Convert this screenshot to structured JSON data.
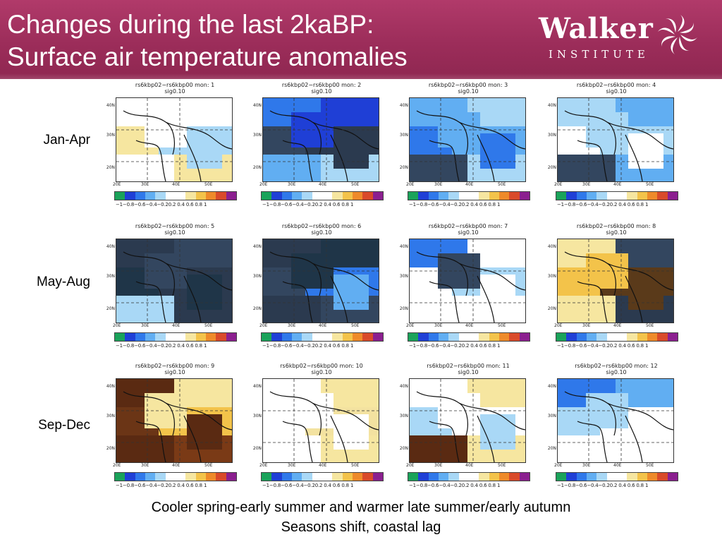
{
  "header": {
    "title_line1": "Changes during the last 2kaBP:",
    "title_line2": "Surface air temperature anomalies",
    "logo_word": "Walker",
    "logo_sub": "INSTITUTE"
  },
  "rows": [
    {
      "label": "Jan-Apr"
    },
    {
      "label": "May-Aug"
    },
    {
      "label": "Sep-Dec"
    }
  ],
  "panels": [
    {
      "title1": "rs6kbp02−rs6kbp00  mon: 1",
      "title2": "sig0.10",
      "scheme": "mixed_light"
    },
    {
      "title1": "rs6kbp02−rs6kbp00  mon: 2",
      "title2": "sig0.10",
      "scheme": "blue_dark"
    },
    {
      "title1": "rs6kbp02−rs6kbp00  mon: 3",
      "title2": "sig0.10",
      "scheme": "blue_mid"
    },
    {
      "title1": "rs6kbp02−rs6kbp00  mon: 4",
      "title2": "sig0.10",
      "scheme": "blue_light"
    },
    {
      "title1": "rs6kbp02−rs6kbp00  mon: 5",
      "title2": "sig0.10",
      "scheme": "dark_navy"
    },
    {
      "title1": "rs6kbp02−rs6kbp00  mon: 6",
      "title2": "sig0.10",
      "scheme": "dark_navy2"
    },
    {
      "title1": "rs6kbp02−rs6kbp00  mon: 7",
      "title2": "sig0.10",
      "scheme": "blue_white"
    },
    {
      "title1": "rs6kbp02−rs6kbp00  mon: 8",
      "title2": "sig0.10",
      "scheme": "warm_dark"
    },
    {
      "title1": "rs6kbp02−rs6kbp00  mon: 9",
      "title2": "sig0.10",
      "scheme": "brown_hot"
    },
    {
      "title1": "rs6kbp02−rs6kbp00  mon: 10",
      "title2": "sig0.10",
      "scheme": "yellow_light"
    },
    {
      "title1": "rs6kbp02−rs6kbp00  mon: 11",
      "title2": "sig0.10",
      "scheme": "yellow_mixed"
    },
    {
      "title1": "rs6kbp02−rs6kbp00  mon: 12",
      "title2": "sig0.10",
      "scheme": "blue_top"
    }
  ],
  "axes": {
    "lat_labels": [
      "40N",
      "30N",
      "20N"
    ],
    "lon_labels": [
      "20E",
      "30E",
      "40E",
      "50E"
    ]
  },
  "colorbar": {
    "colors": [
      "#1aa35a",
      "#1f3fd6",
      "#2f78ea",
      "#61aef2",
      "#a9d8f6",
      "#ffffff",
      "#ffffff",
      "#f6e6a0",
      "#f3c34a",
      "#ee8a2a",
      "#d94a2a",
      "#8b1f8f"
    ],
    "labels": "−1−0.8−0.6−0.4−0.20.2 0.4 0.6 0.8  1"
  },
  "caption": {
    "line1": "Cooler spring-early summer and warmer late summer/early autumn",
    "line2": "Seasons shift, coastal lag"
  }
}
